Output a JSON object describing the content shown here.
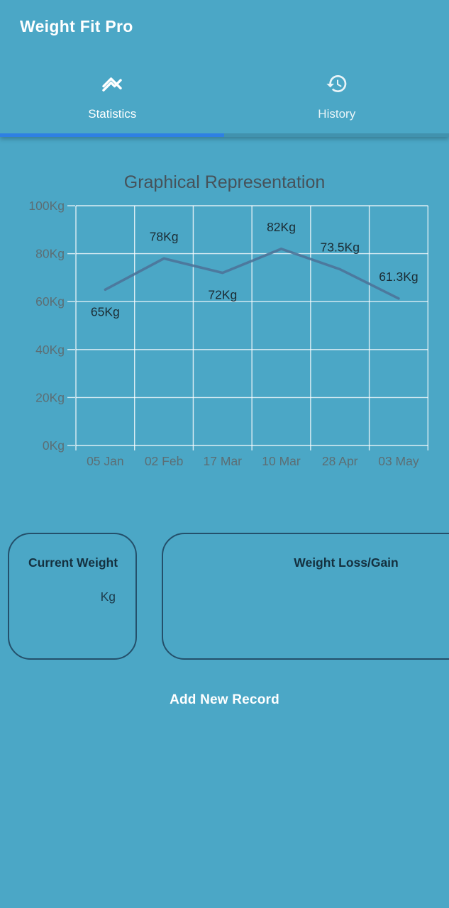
{
  "app": {
    "title": "Weight Fit Pro"
  },
  "tabs": [
    {
      "label": "Statistics",
      "icon": "stats-line-chart-icon",
      "active": true
    },
    {
      "label": "History",
      "icon": "history-clock-icon",
      "active": false
    }
  ],
  "colors": {
    "background": "#4BA7C6",
    "tab_indicator": "#2E80E3",
    "chart_line": "#4D7499",
    "grid": "rgba(255,255,255,0.8)",
    "axis_label": "#5C6E74",
    "point_label": "#1B2B33",
    "card_border": "#24506B",
    "card_text": "#14303F"
  },
  "chart_data": {
    "type": "line",
    "title": "Graphical Representation",
    "categories": [
      "05 Jan",
      "02 Feb",
      "17 Mar",
      "10 Mar",
      "28 Apr",
      "03 May"
    ],
    "values": [
      65,
      78,
      72,
      82,
      73.5,
      61.3
    ],
    "point_labels": [
      "65Kg",
      "78Kg",
      "72Kg",
      "82Kg",
      "73.5Kg",
      "61.3Kg"
    ],
    "label_positions": [
      "below",
      "above",
      "below",
      "above",
      "above",
      "above"
    ],
    "y_ticks": [
      "0Kg",
      "20Kg",
      "40Kg",
      "60Kg",
      "80Kg",
      "100Kg"
    ],
    "ylim": [
      0,
      100
    ],
    "grid": true,
    "legend": false,
    "xlabel": "",
    "ylabel": ""
  },
  "cards": {
    "current_weight": {
      "title": "Current Weight",
      "value": "Kg"
    },
    "weight_loss_gain": {
      "title": "Weight Loss/Gain"
    }
  },
  "actions": {
    "add_new_record": "Add New Record"
  }
}
